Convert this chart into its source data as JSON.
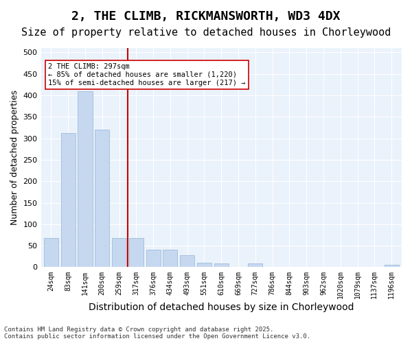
{
  "title1": "2, THE CLIMB, RICKMANSWORTH, WD3 4DX",
  "title2": "Size of property relative to detached houses in Chorleywood",
  "xlabel": "Distribution of detached houses by size in Chorleywood",
  "ylabel": "Number of detached properties",
  "categories": [
    "24sqm",
    "83sqm",
    "141sqm",
    "200sqm",
    "259sqm",
    "317sqm",
    "376sqm",
    "434sqm",
    "493sqm",
    "551sqm",
    "610sqm",
    "669sqm",
    "727sqm",
    "786sqm",
    "844sqm",
    "903sqm",
    "962sqm",
    "1020sqm",
    "1079sqm",
    "1137sqm",
    "1196sqm"
  ],
  "values": [
    68,
    312,
    410,
    320,
    68,
    68,
    40,
    40,
    28,
    10,
    8,
    0,
    8,
    0,
    0,
    0,
    0,
    0,
    0,
    0,
    5
  ],
  "bar_color": "#c5d8f0",
  "bar_edge_color": "#a0bcd8",
  "vline_color": "#cc0000",
  "annotation_text": "2 THE CLIMB: 297sqm\n← 85% of detached houses are smaller (1,220)\n15% of semi-detached houses are larger (217) →",
  "annotation_box_color": "#ffffff",
  "annotation_box_edge": "#cc0000",
  "ylim": [
    0,
    510
  ],
  "yticks": [
    0,
    50,
    100,
    150,
    200,
    250,
    300,
    350,
    400,
    450,
    500
  ],
  "footer": "Contains HM Land Registry data © Crown copyright and database right 2025.\nContains public sector information licensed under the Open Government Licence v3.0.",
  "bg_color": "#eaf2fb",
  "title1_fontsize": 13,
  "title2_fontsize": 11,
  "xlabel_fontsize": 10,
  "ylabel_fontsize": 9
}
